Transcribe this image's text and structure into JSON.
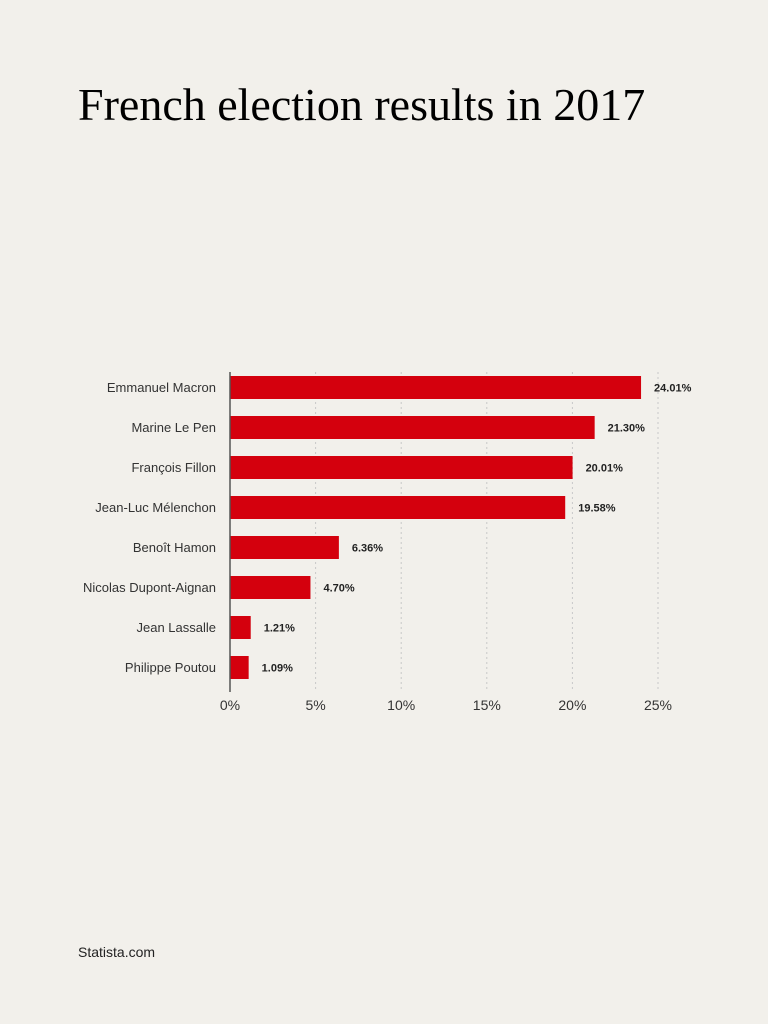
{
  "header": {
    "title": "French election results in 2017"
  },
  "footer": {
    "source": "Statista.com"
  },
  "colors": {
    "bar": "#d4000d",
    "grid": "#c8c8c8",
    "axis": "#555555",
    "background": "#f2f0eb"
  },
  "chart_data": {
    "type": "bar",
    "orientation": "horizontal",
    "title": "French election results in 2017",
    "categories": [
      "Emmanuel Macron",
      "Marine Le Pen",
      "François Fillon",
      "Jean-Luc Mélenchon",
      "Benoît Hamon",
      "Nicolas Dupont-Aignan",
      "Jean Lassalle",
      "Philippe Poutou"
    ],
    "values": [
      24.01,
      21.3,
      20.01,
      19.58,
      6.36,
      4.7,
      1.21,
      1.09
    ],
    "value_labels": [
      "24.01%",
      "21.30%",
      "20.01%",
      "19.58%",
      "6.36%",
      "4.70%",
      "1.21%",
      "1.09%"
    ],
    "xlim": [
      0,
      25
    ],
    "xticks": [
      0,
      5,
      10,
      15,
      20,
      25
    ],
    "xtick_labels": [
      "0%",
      "5%",
      "10%",
      "15%",
      "20%",
      "25%"
    ],
    "grid": true,
    "legend": "none"
  }
}
